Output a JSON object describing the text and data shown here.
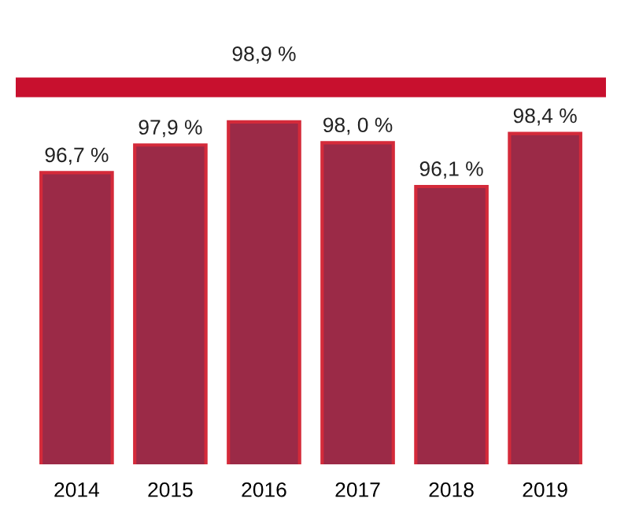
{
  "chart_data": {
    "type": "bar",
    "categories": [
      "2014",
      "2015",
      "2016",
      "2017",
      "2018",
      "2019"
    ],
    "values": [
      96.7,
      97.9,
      98.9,
      98.0,
      96.1,
      98.4
    ],
    "value_labels": [
      "96,7 %",
      "97,9 %",
      "98,9 %",
      "98, 0 %",
      "96,1 %",
      "98,4 %"
    ],
    "color": "#9b2a47",
    "tick_labels": "x",
    "grid": false,
    "legend": false,
    "ref_lines": [
      {
        "axis": "y",
        "value": 100.4,
        "label": null,
        "color": "#c8102e"
      }
    ]
  }
}
